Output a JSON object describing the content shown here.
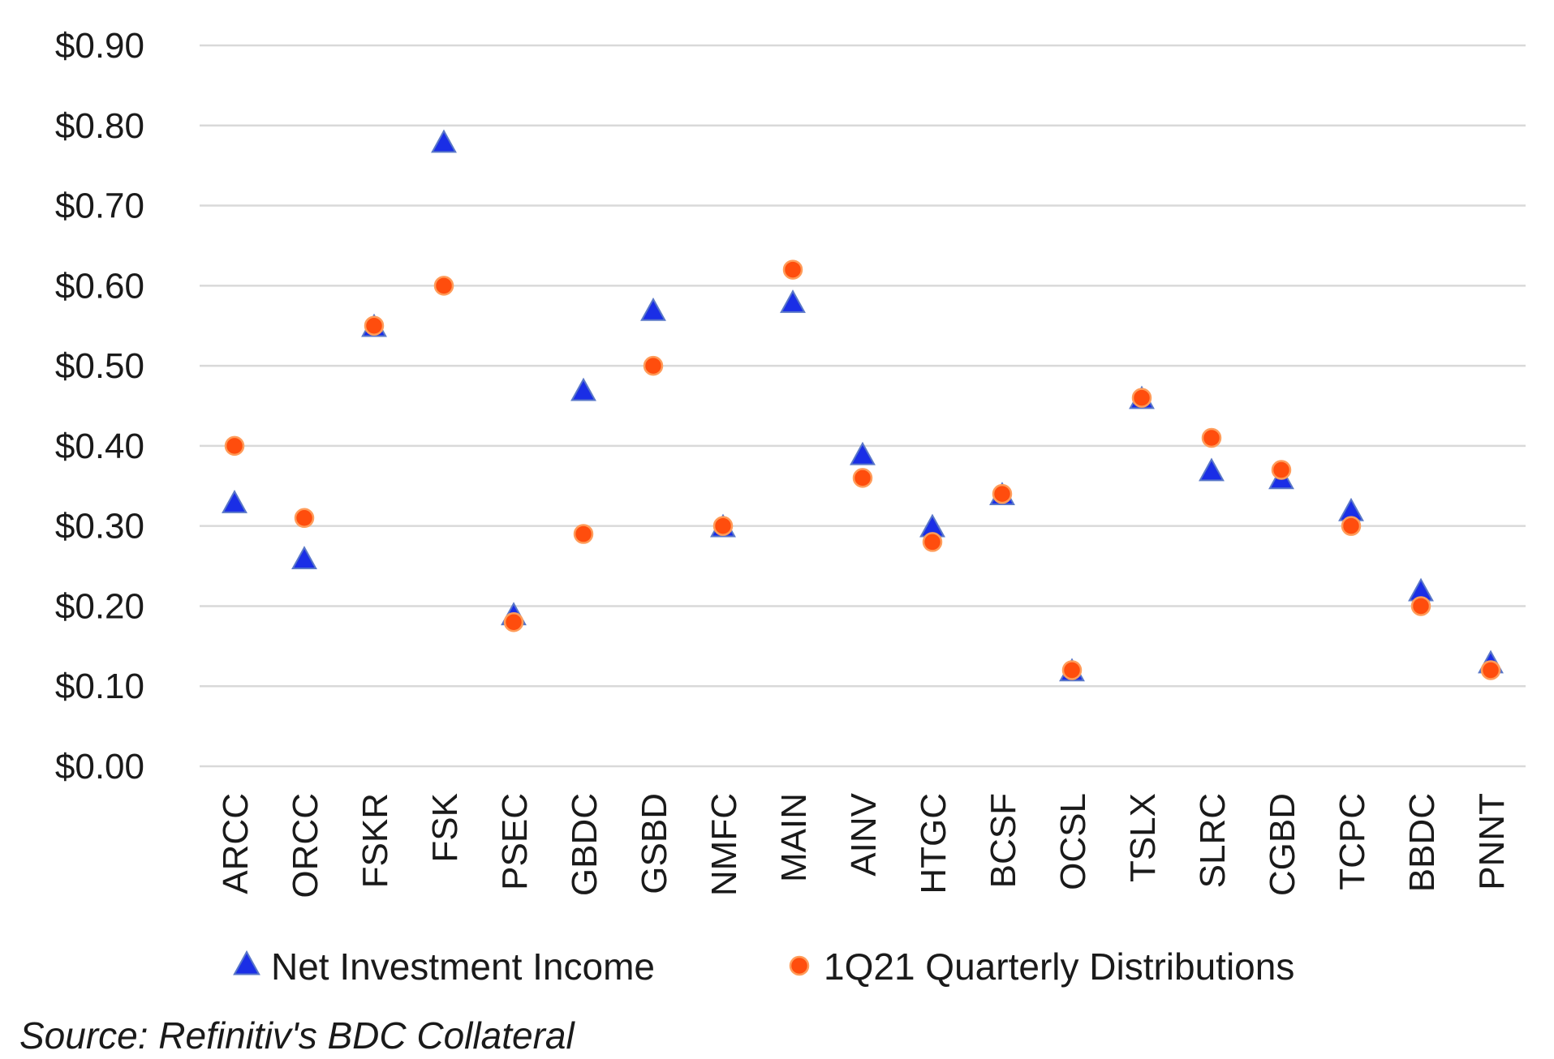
{
  "chart_data": {
    "type": "scatter",
    "categories": [
      "ARCC",
      "ORCC",
      "FSKR",
      "FSK",
      "PSEC",
      "GBDC",
      "GSBD",
      "NMFC",
      "MAIN",
      "AINV",
      "HTGC",
      "BCSF",
      "OCSL",
      "TSLX",
      "SLRC",
      "CGBD",
      "TCPC",
      "BBDC",
      "PNNT"
    ],
    "series": [
      {
        "name": "Net Investment Income",
        "marker": "triangle",
        "color": "#1a2ee6",
        "values": [
          0.33,
          0.26,
          0.55,
          0.78,
          0.19,
          0.47,
          0.57,
          0.3,
          0.58,
          0.39,
          0.3,
          0.34,
          0.12,
          0.46,
          0.37,
          0.36,
          0.32,
          0.22,
          0.13
        ]
      },
      {
        "name": "1Q21 Quarterly Distributions",
        "marker": "circle",
        "color": "#ff4d0d",
        "values": [
          0.4,
          0.31,
          0.55,
          0.6,
          0.18,
          0.29,
          0.5,
          0.3,
          0.62,
          0.36,
          0.28,
          0.34,
          0.12,
          0.46,
          0.41,
          0.37,
          0.3,
          0.2,
          0.12
        ]
      }
    ],
    "ylim": [
      0,
      0.9
    ],
    "yticks": [
      "$0.00",
      "$0.10",
      "$0.20",
      "$0.30",
      "$0.40",
      "$0.50",
      "$0.60",
      "$0.70",
      "$0.80",
      "$0.90"
    ],
    "grid": true,
    "legend_position": "bottom",
    "title": "",
    "xlabel": "",
    "ylabel": ""
  },
  "source_text": "Source: Refinitiv's BDC Collateral"
}
